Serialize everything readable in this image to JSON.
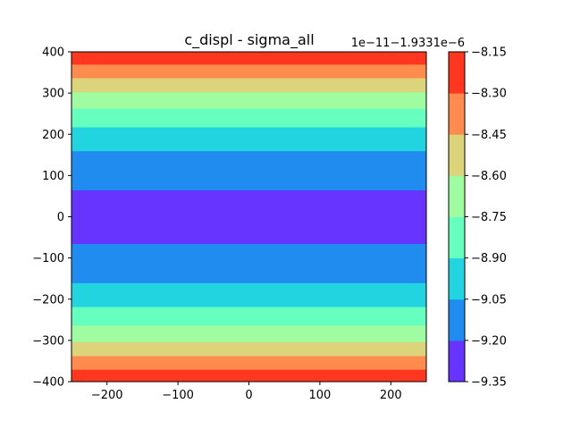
{
  "chart_data": {
    "type": "heatmap",
    "title": "c_displ - sigma_all",
    "x_ticks": [
      -200,
      -100,
      0,
      100,
      200
    ],
    "x_tick_labels": [
      "−200",
      "−100",
      "0",
      "100",
      "200"
    ],
    "xlim": [
      -250,
      250
    ],
    "y_ticks": [
      400,
      300,
      200,
      100,
      0,
      -100,
      -200,
      -300,
      -400
    ],
    "y_tick_labels": [
      "400",
      "300",
      "200",
      "100",
      "0",
      "−100",
      "−200",
      "−300",
      "−400"
    ],
    "ylim": [
      -400,
      400
    ],
    "bands": [
      {
        "y0": -400,
        "y1": -370,
        "level": 7
      },
      {
        "y0": -370,
        "y1": -337,
        "level": 6
      },
      {
        "y0": -337,
        "y1": -303,
        "level": 5
      },
      {
        "y0": -303,
        "y1": -263,
        "level": 4
      },
      {
        "y0": -263,
        "y1": -218,
        "level": 3
      },
      {
        "y0": -218,
        "y1": -160,
        "level": 2
      },
      {
        "y0": -160,
        "y1": -65,
        "level": 1
      },
      {
        "y0": -65,
        "y1": 65,
        "level": 0
      },
      {
        "y0": 65,
        "y1": 160,
        "level": 1
      },
      {
        "y0": 160,
        "y1": 218,
        "level": 2
      },
      {
        "y0": 218,
        "y1": 263,
        "level": 3
      },
      {
        "y0": 263,
        "y1": 303,
        "level": 4
      },
      {
        "y0": 303,
        "y1": 337,
        "level": 5
      },
      {
        "y0": 337,
        "y1": 370,
        "level": 6
      },
      {
        "y0": 370,
        "y1": 400,
        "level": 7
      }
    ],
    "level_colors": [
      "#6633ff",
      "#208cf0",
      "#22d4e0",
      "#66ffc0",
      "#a0fca0",
      "#dcd47a",
      "#ff8c4e",
      "#ff3620"
    ],
    "colorbar": {
      "levels": [
        -9.35,
        -9.2,
        -9.05,
        -8.9,
        -8.75,
        -8.6,
        -8.45,
        -8.3,
        -8.15
      ],
      "tick_labels": [
        "−9.35",
        "−9.20",
        "−9.05",
        "−8.90",
        "−8.75",
        "−8.60",
        "−8.45",
        "−8.30",
        "−8.15"
      ],
      "offset_text": "1e−11−1.9331e−6"
    }
  }
}
